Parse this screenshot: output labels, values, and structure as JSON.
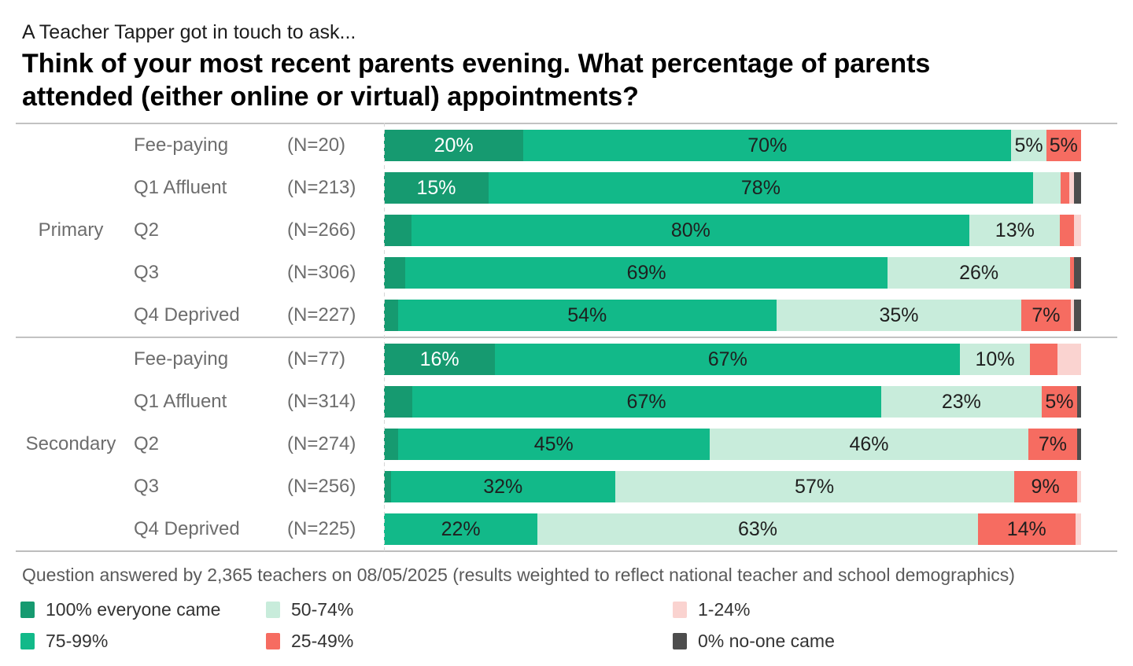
{
  "header": {
    "kicker": "A Teacher Tapper got in touch to ask...",
    "title_lines": [
      "Think of your most recent parents evening. What percentage of parents",
      "attended (either online or virtual) appointments?"
    ]
  },
  "footer": {
    "note": "Question answered by 2,365 teachers on 08/05/2025 (results weighted to reflect national teacher and school demographics)"
  },
  "buckets": {
    "g100": {
      "label": "100% everyone came",
      "color": "#169a70",
      "label_color": "#ffffff"
    },
    "g75": {
      "label": "75-99%",
      "color": "#12b989",
      "label_color": "#1f1f1f"
    },
    "g50": {
      "label": "50-74%",
      "color": "#c8ecdb",
      "label_color": "#1f1f1f"
    },
    "r25": {
      "label": "25-49%",
      "color": "#f66c61",
      "label_color": "#1f1f1f"
    },
    "p1": {
      "label": "1-24%",
      "color": "#fad3d0",
      "label_color": "#1f1f1f"
    },
    "g0": {
      "label": "0% no-one came",
      "color": "#4d4d4d",
      "label_color": "#ffffff"
    }
  },
  "legend_columns": [
    [
      "g100",
      "g75"
    ],
    [
      "g50",
      "r25"
    ],
    [
      "p1",
      "g0"
    ]
  ],
  "chart_data": {
    "type": "bar",
    "orientation": "horizontal-stacked",
    "units": "percent of teachers",
    "stack_order": [
      "g100",
      "g75",
      "g50",
      "r25",
      "p1",
      "g0"
    ],
    "groups": [
      {
        "label": "Primary",
        "rows": [
          {
            "category": "Fee-paying",
            "n": "(N=20)",
            "segments": [
              {
                "k": "g100",
                "v": 20,
                "t": "20%"
              },
              {
                "k": "g75",
                "v": 70,
                "t": "70%"
              },
              {
                "k": "g50",
                "v": 5,
                "t": "5%"
              },
              {
                "k": "r25",
                "v": 5,
                "t": "5%"
              }
            ]
          },
          {
            "category": "Q1 Affluent",
            "n": "(N=213)",
            "segments": [
              {
                "k": "g100",
                "v": 15,
                "t": "15%"
              },
              {
                "k": "g75",
                "v": 78,
                "t": "78%"
              },
              {
                "k": "g50",
                "v": 4,
                "t": ""
              },
              {
                "k": "r25",
                "v": 1.2,
                "t": ""
              },
              {
                "k": "p1",
                "v": 0.7,
                "t": ""
              },
              {
                "k": "g0",
                "v": 1,
                "t": ""
              }
            ]
          },
          {
            "category": "Q2",
            "n": "(N=266)",
            "segments": [
              {
                "k": "g100",
                "v": 4,
                "t": ""
              },
              {
                "k": "g75",
                "v": 80,
                "t": "80%"
              },
              {
                "k": "g50",
                "v": 13,
                "t": "13%"
              },
              {
                "k": "r25",
                "v": 2,
                "t": ""
              },
              {
                "k": "p1",
                "v": 1,
                "t": ""
              }
            ]
          },
          {
            "category": "Q3",
            "n": "(N=306)",
            "segments": [
              {
                "k": "g100",
                "v": 3,
                "t": ""
              },
              {
                "k": "g75",
                "v": 69,
                "t": "69%"
              },
              {
                "k": "g50",
                "v": 26,
                "t": "26%"
              },
              {
                "k": "r25",
                "v": 0.6,
                "t": ""
              },
              {
                "k": "g0",
                "v": 1,
                "t": ""
              }
            ]
          },
          {
            "category": "Q4 Deprived",
            "n": "(N=227)",
            "segments": [
              {
                "k": "g100",
                "v": 2,
                "t": ""
              },
              {
                "k": "g75",
                "v": 54,
                "t": "54%"
              },
              {
                "k": "g50",
                "v": 35,
                "t": "35%"
              },
              {
                "k": "r25",
                "v": 7,
                "t": "7%"
              },
              {
                "k": "p1",
                "v": 0.5,
                "t": ""
              },
              {
                "k": "g0",
                "v": 1,
                "t": ""
              }
            ]
          }
        ]
      },
      {
        "label": "Secondary",
        "rows": [
          {
            "category": "Fee-paying",
            "n": "(N=77)",
            "segments": [
              {
                "k": "g100",
                "v": 16,
                "t": "16%"
              },
              {
                "k": "g75",
                "v": 67,
                "t": "67%"
              },
              {
                "k": "g50",
                "v": 10,
                "t": "10%"
              },
              {
                "k": "r25",
                "v": 4,
                "t": ""
              },
              {
                "k": "p1",
                "v": 3.4,
                "t": ""
              }
            ]
          },
          {
            "category": "Q1 Affluent",
            "n": "(N=314)",
            "segments": [
              {
                "k": "g100",
                "v": 4,
                "t": ""
              },
              {
                "k": "g75",
                "v": 67,
                "t": "67%"
              },
              {
                "k": "g50",
                "v": 23,
                "t": "23%"
              },
              {
                "k": "r25",
                "v": 5,
                "t": "5%"
              },
              {
                "k": "g0",
                "v": 0.6,
                "t": ""
              }
            ]
          },
          {
            "category": "Q2",
            "n": "(N=274)",
            "segments": [
              {
                "k": "g100",
                "v": 2,
                "t": ""
              },
              {
                "k": "g75",
                "v": 45,
                "t": "45%"
              },
              {
                "k": "g50",
                "v": 46,
                "t": "46%"
              },
              {
                "k": "r25",
                "v": 7,
                "t": "7%"
              },
              {
                "k": "g0",
                "v": 0.6,
                "t": ""
              }
            ]
          },
          {
            "category": "Q3",
            "n": "(N=256)",
            "segments": [
              {
                "k": "g100",
                "v": 1,
                "t": ""
              },
              {
                "k": "g75",
                "v": 32,
                "t": "32%"
              },
              {
                "k": "g50",
                "v": 57,
                "t": "57%"
              },
              {
                "k": "r25",
                "v": 9,
                "t": "9%"
              },
              {
                "k": "p1",
                "v": 0.6,
                "t": ""
              }
            ]
          },
          {
            "category": "Q4 Deprived",
            "n": "(N=225)",
            "segments": [
              {
                "k": "g75",
                "v": 22,
                "t": "22%"
              },
              {
                "k": "g50",
                "v": 63,
                "t": "63%"
              },
              {
                "k": "r25",
                "v": 14,
                "t": "14%"
              },
              {
                "k": "p1",
                "v": 0.8,
                "t": ""
              }
            ]
          }
        ]
      }
    ]
  }
}
